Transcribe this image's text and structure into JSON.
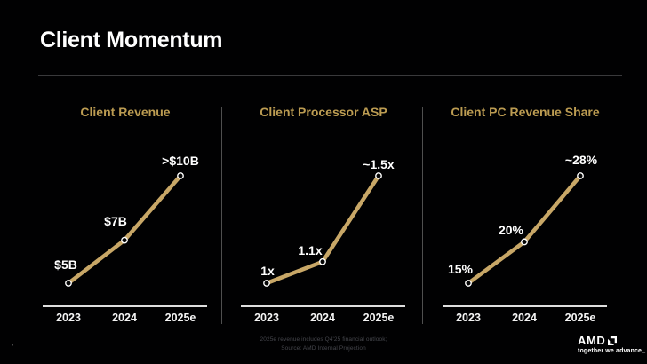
{
  "slide": {
    "title": "Client Momentum",
    "page_number": "7",
    "footnote_line1": "2025e revenue includes Q4'25 financial outlook;",
    "footnote_line2": "Source: AMD Internal Projection",
    "logo": {
      "wordmark": "AMD",
      "tagline": "together we advance_"
    }
  },
  "colors": {
    "background": "#010102",
    "gold_line": "#C8A767",
    "gold_title": "#BC9C52",
    "label_white": "#FFFFFF",
    "axis": "#DEDEDE",
    "divider": "#4F4F4F",
    "header_rule": "#39393B",
    "footnote": "#46474D",
    "marker_fill": "#050505",
    "marker_stroke": "#FFFFFF"
  },
  "chart_data": [
    {
      "type": "line",
      "title": "Client Revenue",
      "categories": [
        "2023",
        "2024",
        "2025e"
      ],
      "values": [
        5,
        7,
        10
      ],
      "point_labels": [
        "$5B",
        "$7B",
        ">$10B"
      ],
      "xlabel": "",
      "ylabel": "",
      "y_range": [
        5,
        10
      ],
      "grid": false,
      "legend": false
    },
    {
      "type": "line",
      "title": "Client Processor ASP",
      "categories": [
        "2023",
        "2024",
        "2025e"
      ],
      "values": [
        1,
        1.1,
        1.5
      ],
      "point_labels": [
        "1x",
        "1.1x",
        "~1.5x"
      ],
      "xlabel": "",
      "ylabel": "",
      "y_range": [
        1,
        1.5
      ],
      "grid": false,
      "legend": false
    },
    {
      "type": "line",
      "title": "Client PC Revenue Share",
      "categories": [
        "2023",
        "2024",
        "2025e"
      ],
      "values": [
        15,
        20,
        28
      ],
      "point_labels": [
        "15%",
        "20%",
        "~28%"
      ],
      "xlabel": "",
      "ylabel": "",
      "y_range": [
        15,
        28
      ],
      "grid": false,
      "legend": false
    }
  ]
}
